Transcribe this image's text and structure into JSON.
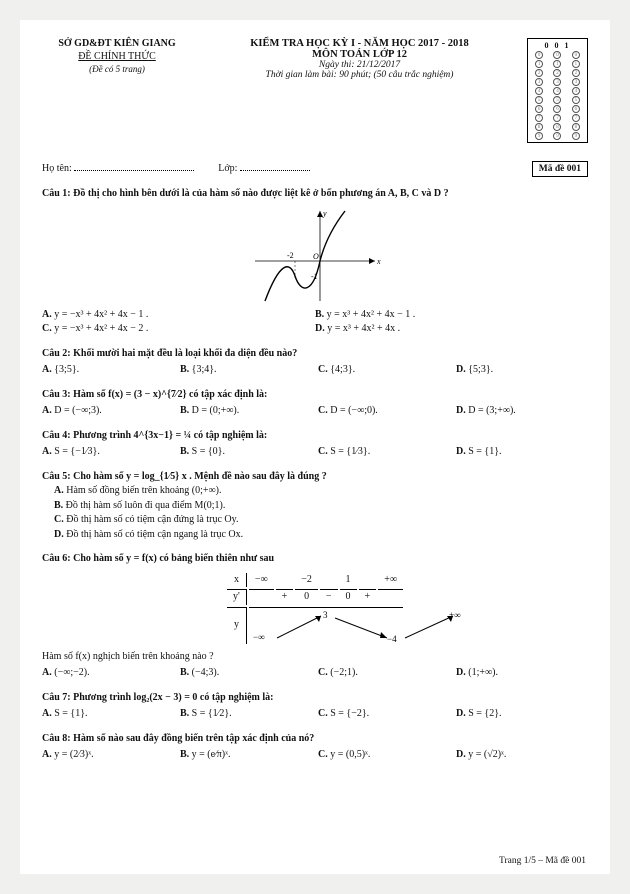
{
  "header": {
    "org": "SỞ GD&ĐT KIÊN GIANG",
    "official": "ĐỀ CHÍNH THỨC",
    "pages": "(Đề có 5 trang)",
    "title": "KIỂM TRA HỌC KỲ I - NĂM HỌC 2017 - 2018",
    "subject": "MÔN TOÁN LỚP 12",
    "date": "Ngày thi: 21/12/2017",
    "time": "Thời gian làm bài: 90 phút; (50 câu trắc nghiệm)",
    "code_head": "001",
    "name_label": "Họ tên:",
    "class_label": "Lớp:",
    "code_box": "Mã đề 001"
  },
  "bubble": {
    "rows": [
      "0",
      "1",
      "2",
      "3",
      "4",
      "5",
      "6",
      "7",
      "8",
      "9"
    ]
  },
  "q1": {
    "stem": "Câu 1:  Đồ thị cho hình bên dưới là của hàm số nào được liệt kê ở bốn phương án A, B, C và D ?",
    "A": "y = −x³ + 4x² + 4x − 1 .",
    "B": "y = x³ + 4x² + 4x − 1 .",
    "C": "y = −x³ + 4x² + 4x − 2 .",
    "D": "y = x³ + 4x² + 4x ."
  },
  "q2": {
    "stem": "Câu 2:  Khối mười hai mặt đều là loại khối đa diện đều nào?",
    "A": "{3;5}.",
    "B": "{3;4}.",
    "C": "{4;3}.",
    "D": "{5;3}."
  },
  "q3": {
    "stem": "Câu 3:  Hàm số f(x) = (3 − x)^{7⁄2} có tập xác định là:",
    "A": "D = (−∞;3).",
    "B": "D = (0;+∞).",
    "C": "D = (−∞;0).",
    "D": "D = (3;+∞)."
  },
  "q4": {
    "stem": "Câu 4:  Phương trình 4^{3x−1} = ¼ có tập nghiệm là:",
    "A": "S = {−1⁄3}.",
    "B": "S = {0}.",
    "C": "S = {1⁄3}.",
    "D": "S = {1}."
  },
  "q5": {
    "stem": "Câu 5:  Cho hàm số y = log_{1⁄5} x . Mệnh đề nào sau đây là đúng ?",
    "A": "Hàm số đồng biến trên khoảng (0;+∞).",
    "B": "Đồ thị hàm số luôn đi qua điểm M(0;1).",
    "C": "Đồ thị hàm số có tiệm cận đứng là trục Oy.",
    "D": "Đồ thị hàm số có tiệm cận ngang là trục Ox."
  },
  "q6": {
    "stem": "Câu 6:  Cho hàm số y = f(x) có bảng biến thiên như sau",
    "post": "Hàm số f(x) nghịch biến trên khoảng nào ?",
    "A": "(−∞;−2).",
    "B": "(−4;3).",
    "C": "(−2;1).",
    "D": "(1;+∞).",
    "table": {
      "x": [
        "−∞",
        "−2",
        "1",
        "+∞"
      ],
      "yp": [
        "+",
        "0",
        "−",
        "0",
        "+"
      ],
      "y_left": "−∞",
      "y_mid1": "3",
      "y_mid2": "−4",
      "y_right": "+∞"
    }
  },
  "q7": {
    "stem": "Câu 7:  Phương trình log₂(2x − 3) = 0 có tập nghiệm là:",
    "A": "S = {1}.",
    "B": "S = {1⁄2}.",
    "C": "S = {−2}.",
    "D": "S = {2}."
  },
  "q8": {
    "stem": "Câu 8:  Hàm số nào sau đây đồng biến trên tập xác định của nó?",
    "A": "y = (2⁄3)ˣ.",
    "B": "y = (e⁄π)ˣ.",
    "C": "y = (0,5)ˣ.",
    "D": "y = (√2)ˣ."
  },
  "footer": "Trang 1/5 – Mã đề 001"
}
